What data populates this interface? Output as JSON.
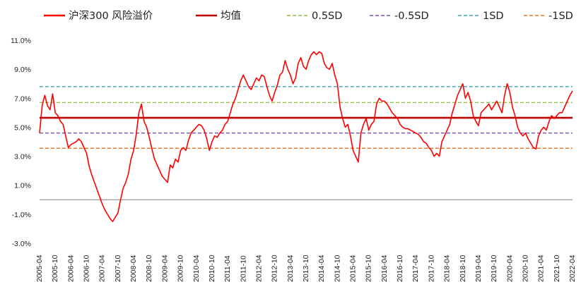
{
  "chart_data": {
    "type": "line",
    "title": "",
    "xlabel": "",
    "ylabel": "",
    "ylim": [
      -3.0,
      11.0
    ],
    "y_ticks": [
      11.0,
      9.0,
      7.0,
      5.0,
      3.0,
      1.0,
      -1.0,
      -3.0
    ],
    "y_tick_labels": [
      "11.0%",
      "9.0%",
      "7.0%",
      "5.0%",
      "3.0%",
      "1.0%",
      "-1.0%",
      "-3.0%"
    ],
    "x_tick_labels": [
      "2005-04",
      "2005-10",
      "2006-04",
      "2006-10",
      "2007-04",
      "2007-10",
      "2008-04",
      "2008-10",
      "2009-04",
      "2009-10",
      "2010-04",
      "2010-10",
      "2011-04",
      "2011-10",
      "2012-04",
      "2012-10",
      "2013-04",
      "2013-10",
      "2014-04",
      "2014-10",
      "2015-04",
      "2015-10",
      "2016-04",
      "2016-10",
      "2017-04",
      "2017-10",
      "2018-04",
      "2018-10",
      "2019-04",
      "2019-10",
      "2020-04",
      "2020-10",
      "2021-04",
      "2021-10",
      "2022-04"
    ],
    "grid": false,
    "legend_position": "top",
    "series": [
      {
        "name": "沪深300 风险溢价",
        "color": "#ff0000",
        "style": "solid",
        "points": [
          [
            "2005-04",
            4.6
          ],
          [
            "2005-05",
            6.5
          ],
          [
            "2005-06",
            7.2
          ],
          [
            "2005-07",
            6.5
          ],
          [
            "2005-08",
            6.2
          ],
          [
            "2005-09",
            7.3
          ],
          [
            "2005-10",
            6.0
          ],
          [
            "2005-11",
            5.8
          ],
          [
            "2005-12",
            5.4
          ],
          [
            "2006-01",
            5.2
          ],
          [
            "2006-02",
            4.4
          ],
          [
            "2006-03",
            3.6
          ],
          [
            "2006-04",
            3.8
          ],
          [
            "2006-05",
            3.9
          ],
          [
            "2006-06",
            4.0
          ],
          [
            "2006-07",
            4.2
          ],
          [
            "2006-08",
            4.0
          ],
          [
            "2006-09",
            3.6
          ],
          [
            "2006-10",
            3.2
          ],
          [
            "2006-11",
            2.3
          ],
          [
            "2006-12",
            1.7
          ],
          [
            "2007-01",
            1.2
          ],
          [
            "2007-02",
            0.7
          ],
          [
            "2007-03",
            0.2
          ],
          [
            "2007-04",
            -0.3
          ],
          [
            "2007-05",
            -0.7
          ],
          [
            "2007-06",
            -1.0
          ],
          [
            "2007-07",
            -1.3
          ],
          [
            "2007-08",
            -1.5
          ],
          [
            "2007-09",
            -1.2
          ],
          [
            "2007-10",
            -0.9
          ],
          [
            "2007-11",
            0.0
          ],
          [
            "2007-12",
            0.8
          ],
          [
            "2008-01",
            1.2
          ],
          [
            "2008-02",
            1.8
          ],
          [
            "2008-03",
            2.8
          ],
          [
            "2008-04",
            3.4
          ],
          [
            "2008-05",
            4.5
          ],
          [
            "2008-06",
            6.0
          ],
          [
            "2008-07",
            6.6
          ],
          [
            "2008-08",
            5.4
          ],
          [
            "2008-09",
            5.0
          ],
          [
            "2008-10",
            4.3
          ],
          [
            "2008-11",
            3.5
          ],
          [
            "2008-12",
            2.8
          ],
          [
            "2009-01",
            2.4
          ],
          [
            "2009-02",
            2.0
          ],
          [
            "2009-03",
            1.6
          ],
          [
            "2009-04",
            1.4
          ],
          [
            "2009-05",
            1.2
          ],
          [
            "2009-06",
            2.4
          ],
          [
            "2009-07",
            2.2
          ],
          [
            "2009-08",
            2.8
          ],
          [
            "2009-09",
            2.6
          ],
          [
            "2009-10",
            3.4
          ],
          [
            "2009-11",
            3.6
          ],
          [
            "2009-12",
            3.4
          ],
          [
            "2010-01",
            4.1
          ],
          [
            "2010-02",
            4.6
          ],
          [
            "2010-03",
            4.8
          ],
          [
            "2010-04",
            5.0
          ],
          [
            "2010-05",
            5.2
          ],
          [
            "2010-06",
            5.1
          ],
          [
            "2010-07",
            4.8
          ],
          [
            "2010-08",
            4.2
          ],
          [
            "2010-09",
            3.4
          ],
          [
            "2010-10",
            4.0
          ],
          [
            "2010-11",
            4.4
          ],
          [
            "2010-12",
            4.3
          ],
          [
            "2011-01",
            4.6
          ],
          [
            "2011-02",
            4.8
          ],
          [
            "2011-03",
            5.2
          ],
          [
            "2011-04",
            5.4
          ],
          [
            "2011-05",
            6.0
          ],
          [
            "2011-06",
            6.6
          ],
          [
            "2011-07",
            7.0
          ],
          [
            "2011-08",
            7.6
          ],
          [
            "2011-09",
            8.2
          ],
          [
            "2011-10",
            8.6
          ],
          [
            "2011-11",
            8.2
          ],
          [
            "2011-12",
            7.8
          ],
          [
            "2012-01",
            7.6
          ],
          [
            "2012-02",
            8.0
          ],
          [
            "2012-03",
            8.4
          ],
          [
            "2012-04",
            8.2
          ],
          [
            "2012-05",
            8.6
          ],
          [
            "2012-06",
            8.5
          ],
          [
            "2012-07",
            7.8
          ],
          [
            "2012-08",
            7.2
          ],
          [
            "2012-09",
            6.8
          ],
          [
            "2012-10",
            7.4
          ],
          [
            "2012-11",
            7.9
          ],
          [
            "2012-12",
            8.6
          ],
          [
            "2013-01",
            8.8
          ],
          [
            "2013-02",
            9.6
          ],
          [
            "2013-03",
            9.0
          ],
          [
            "2013-04",
            8.6
          ],
          [
            "2013-05",
            8.0
          ],
          [
            "2013-06",
            8.4
          ],
          [
            "2013-07",
            9.4
          ],
          [
            "2013-08",
            9.8
          ],
          [
            "2013-09",
            9.2
          ],
          [
            "2013-10",
            9.0
          ],
          [
            "2013-11",
            9.6
          ],
          [
            "2013-12",
            10.0
          ],
          [
            "2014-01",
            10.2
          ],
          [
            "2014-02",
            10.0
          ],
          [
            "2014-03",
            10.2
          ],
          [
            "2014-04",
            10.1
          ],
          [
            "2014-05",
            9.4
          ],
          [
            "2014-06",
            9.1
          ],
          [
            "2014-07",
            9.0
          ],
          [
            "2014-08",
            9.4
          ],
          [
            "2014-09",
            8.6
          ],
          [
            "2014-10",
            8.0
          ],
          [
            "2014-11",
            6.4
          ],
          [
            "2014-12",
            5.6
          ],
          [
            "2015-01",
            5.0
          ],
          [
            "2015-02",
            5.2
          ],
          [
            "2015-03",
            4.4
          ],
          [
            "2015-04",
            3.4
          ],
          [
            "2015-05",
            3.0
          ],
          [
            "2015-06",
            2.6
          ],
          [
            "2015-07",
            4.6
          ],
          [
            "2015-08",
            5.2
          ],
          [
            "2015-09",
            5.6
          ],
          [
            "2015-10",
            4.8
          ],
          [
            "2015-11",
            5.2
          ],
          [
            "2015-12",
            5.4
          ],
          [
            "2016-01",
            6.6
          ],
          [
            "2016-02",
            7.0
          ],
          [
            "2016-03",
            6.8
          ],
          [
            "2016-04",
            6.8
          ],
          [
            "2016-05",
            6.6
          ],
          [
            "2016-06",
            6.3
          ],
          [
            "2016-07",
            6.0
          ],
          [
            "2016-08",
            5.8
          ],
          [
            "2016-09",
            5.6
          ],
          [
            "2016-10",
            5.2
          ],
          [
            "2016-11",
            5.0
          ],
          [
            "2016-12",
            4.9
          ],
          [
            "2017-01",
            4.9
          ],
          [
            "2017-02",
            4.8
          ],
          [
            "2017-03",
            4.7
          ],
          [
            "2017-04",
            4.6
          ],
          [
            "2017-05",
            4.5
          ],
          [
            "2017-06",
            4.3
          ],
          [
            "2017-07",
            4.0
          ],
          [
            "2017-08",
            3.9
          ],
          [
            "2017-09",
            3.6
          ],
          [
            "2017-10",
            3.4
          ],
          [
            "2017-11",
            3.0
          ],
          [
            "2017-12",
            3.2
          ],
          [
            "2018-01",
            3.0
          ],
          [
            "2018-02",
            4.0
          ],
          [
            "2018-03",
            4.4
          ],
          [
            "2018-04",
            4.8
          ],
          [
            "2018-05",
            5.2
          ],
          [
            "2018-06",
            6.0
          ],
          [
            "2018-07",
            6.6
          ],
          [
            "2018-08",
            7.2
          ],
          [
            "2018-09",
            7.6
          ],
          [
            "2018-10",
            8.0
          ],
          [
            "2018-11",
            7.0
          ],
          [
            "2018-12",
            7.4
          ],
          [
            "2019-01",
            6.8
          ],
          [
            "2019-02",
            5.8
          ],
          [
            "2019-03",
            5.4
          ],
          [
            "2019-04",
            5.1
          ],
          [
            "2019-05",
            6.0
          ],
          [
            "2019-06",
            6.2
          ],
          [
            "2019-07",
            6.4
          ],
          [
            "2019-08",
            6.6
          ],
          [
            "2019-09",
            6.2
          ],
          [
            "2019-10",
            6.5
          ],
          [
            "2019-11",
            6.8
          ],
          [
            "2019-12",
            6.4
          ],
          [
            "2020-01",
            6.0
          ],
          [
            "2020-02",
            7.2
          ],
          [
            "2020-03",
            8.0
          ],
          [
            "2020-04",
            7.4
          ],
          [
            "2020-05",
            6.4
          ],
          [
            "2020-06",
            5.8
          ],
          [
            "2020-07",
            5.0
          ],
          [
            "2020-08",
            4.6
          ],
          [
            "2020-09",
            4.4
          ],
          [
            "2020-10",
            4.6
          ],
          [
            "2020-11",
            4.2
          ],
          [
            "2020-12",
            3.9
          ],
          [
            "2021-01",
            3.6
          ],
          [
            "2021-02",
            3.5
          ],
          [
            "2021-03",
            4.4
          ],
          [
            "2021-04",
            4.8
          ],
          [
            "2021-05",
            5.0
          ],
          [
            "2021-06",
            4.8
          ],
          [
            "2021-07",
            5.4
          ],
          [
            "2021-08",
            5.8
          ],
          [
            "2021-09",
            5.6
          ],
          [
            "2021-10",
            5.8
          ],
          [
            "2021-11",
            6.0
          ],
          [
            "2021-12",
            6.0
          ],
          [
            "2022-01",
            6.4
          ],
          [
            "2022-02",
            6.8
          ],
          [
            "2022-03",
            7.2
          ],
          [
            "2022-04",
            7.5
          ]
        ]
      },
      {
        "name": "均值",
        "color": "#c00000",
        "style": "solid",
        "value": 5.65
      },
      {
        "name": "0.5SD",
        "color": "#8fbc3f",
        "style": "dashed",
        "value": 6.7
      },
      {
        "name": "-0.5SD",
        "color": "#7a4fb0",
        "style": "dashed",
        "value": 4.6
      },
      {
        "name": "1SD",
        "color": "#3aa6b9",
        "style": "dashed",
        "value": 7.8
      },
      {
        "name": "-1SD",
        "color": "#e57a23",
        "style": "dashed",
        "value": 3.55
      }
    ]
  }
}
